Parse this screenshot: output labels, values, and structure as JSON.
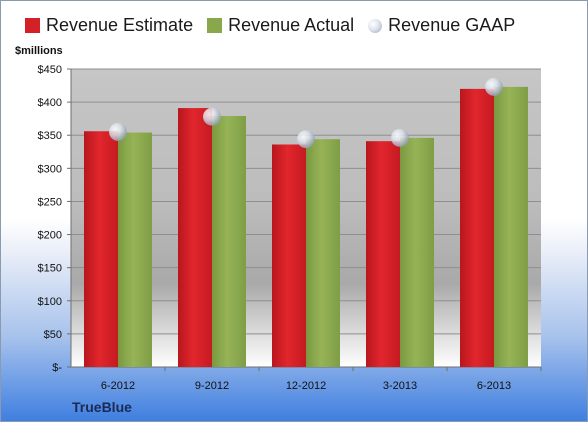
{
  "legend": {
    "estimate": "Revenue Estimate",
    "actual": "Revenue Actual",
    "gaap": "Revenue GAAP"
  },
  "unit_label": "$millions",
  "company": "TrueBlue",
  "colors": {
    "estimate": "#d42027",
    "actual": "#88a84b",
    "gaap": "#b8bfcc"
  },
  "chart_data": {
    "type": "bar",
    "categories": [
      "6-2012",
      "9-2012",
      "12-2012",
      "3-2013",
      "6-2013"
    ],
    "series": [
      {
        "name": "Revenue Estimate",
        "values": [
          356,
          391,
          336,
          341,
          420
        ]
      },
      {
        "name": "Revenue Actual",
        "values": [
          354,
          379,
          344,
          346,
          423
        ]
      },
      {
        "name": "Revenue GAAP",
        "values": [
          355,
          378,
          344,
          346,
          423
        ]
      }
    ],
    "ylabel": "$millions",
    "ylim": [
      0,
      450
    ],
    "yticks": [
      0,
      50,
      100,
      150,
      200,
      250,
      300,
      350,
      400,
      450
    ],
    "ytick_labels": [
      "$-",
      "$50",
      "$100",
      "$150",
      "$200",
      "$250",
      "$300",
      "$350",
      "$400",
      "$450"
    ],
    "grid": true,
    "legend_position": "top"
  }
}
